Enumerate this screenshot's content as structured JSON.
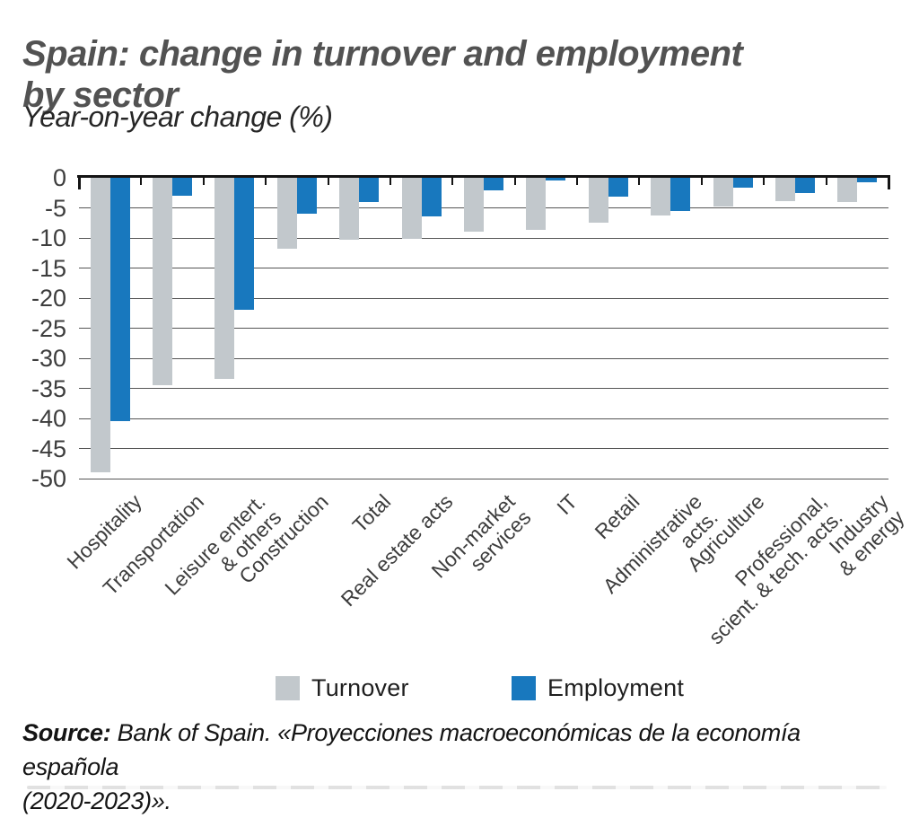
{
  "header": {
    "title_line1": "Spain: change in turnover and employment",
    "title_line2": "by sector",
    "subtitle": "Year-on-year change (%)"
  },
  "chart_data": {
    "type": "bar",
    "title": "Spain: change in turnover and employment by sector",
    "subtitle": "Year-on-year change (%)",
    "xlabel": "",
    "ylabel": "",
    "ylim": [
      -50,
      0
    ],
    "yticks": [
      0,
      -5,
      -10,
      -15,
      -20,
      -25,
      -30,
      -35,
      -40,
      -45,
      -50
    ],
    "grid": true,
    "legend_position": "bottom",
    "categories": [
      "Hospitality",
      "Transportation",
      "Leisure entert.\n& others",
      "Construction",
      "Total",
      "Real estate acts",
      "Non-market\nservices",
      "IT",
      "Retail",
      "Administrative\nacts.",
      "Agriculture",
      "Professional,\nscient. & tech. acts.",
      "Industry\n& energy"
    ],
    "series": [
      {
        "name": "Turnover",
        "color": "#c2c8cc",
        "values": [
          -49,
          -34.5,
          -33.5,
          -11.8,
          -10.3,
          -10.2,
          -9,
          -8.6,
          -7.4,
          -6.2,
          -4.8,
          -3.9,
          -4.1
        ]
      },
      {
        "name": "Employment",
        "color": "#1878be",
        "values": [
          -40.5,
          -3,
          -22,
          -6,
          -4,
          -6.4,
          -2.1,
          -0.4,
          -3.2,
          -5.5,
          -1.7,
          -2.5,
          -0.8
        ]
      }
    ]
  },
  "colors": {
    "turnover_gray": "#c2c8cc",
    "employment_blue": "#1878be",
    "grid_line": "#555555",
    "axis_line": "#141414",
    "title_gray": "#525252"
  },
  "source": {
    "label": "Source:",
    "line1": "Bank of Spain. «Proyecciones macroeconómicas de la economía española",
    "line2": "(2020-2023)»."
  }
}
